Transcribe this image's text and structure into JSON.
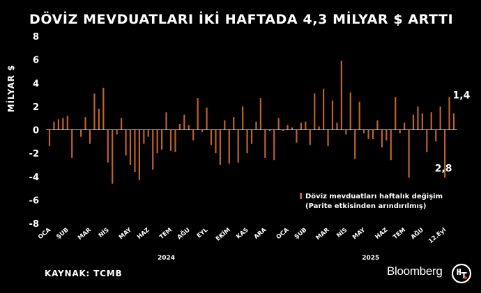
{
  "header": {
    "title": "DÖVİZ MEVDUATLARI İKİ HAFTADA 4,3 MİLYAR $ ARTTI"
  },
  "footer": {
    "source": "KAYNAK: TCMB",
    "brand": "Bloomberg"
  },
  "colors": {
    "bar": "#c0622b",
    "background": "#000000",
    "text": "#ffffff"
  },
  "chart_data": {
    "type": "bar",
    "title": "DÖVİZ MEVDUATLARI İKİ HAFTADA 4,3 MİLYAR $ ARTTI",
    "ylabel": "MİLYAR $",
    "xlabel": "",
    "ylim": [
      -8,
      8
    ],
    "yticks": [
      8,
      6,
      4,
      2,
      0,
      -2,
      -4,
      -6,
      -8
    ],
    "legend": {
      "label_line1": "Döviz mevduatları haftalık değişim",
      "label_line2": "(Parite etkisinden arındırılmış)",
      "placement": "lower-right"
    },
    "grid": false,
    "month_labels": [
      "OCA",
      "ŞUB",
      "MAR",
      "NİS",
      "MAY",
      "HAZ",
      "TEM",
      "AĞU",
      "EYL",
      "EKİM",
      "KAS",
      "ARA",
      "OCA",
      "ŞUB",
      "MAR",
      "NİS",
      "MAY",
      "HAZ",
      "TEM",
      "AĞU",
      "12.Eyl"
    ],
    "month_label_week_index": [
      0,
      4,
      9,
      13,
      18,
      22,
      27,
      31,
      35,
      40,
      44,
      48,
      53,
      57,
      62,
      66,
      70,
      75,
      79,
      83,
      88
    ],
    "year_labels": [
      "2024",
      "2025"
    ],
    "annotations": [
      {
        "text": "2,8",
        "week_index": 88
      },
      {
        "text": "1,4",
        "week_index": 89
      }
    ],
    "values": [
      -1.4,
      0.7,
      0.9,
      1.0,
      1.2,
      -2.4,
      0.0,
      -0.6,
      1.1,
      -1.2,
      3.1,
      1.8,
      3.6,
      -2.8,
      -4.6,
      -0.4,
      1.0,
      -2.2,
      -3.0,
      -3.6,
      -4.3,
      -1.2,
      -0.6,
      -3.4,
      -2.0,
      -1.7,
      1.5,
      -1.8,
      -1.9,
      0.5,
      1.3,
      0.4,
      -0.9,
      2.7,
      -0.2,
      1.9,
      -1.3,
      -2.0,
      -3.0,
      0.8,
      -2.9,
      1.1,
      -2.8,
      2.0,
      -2.0,
      -1.2,
      0.7,
      2.7,
      -2.4,
      -0.1,
      -2.6,
      1.0,
      -0.1,
      0.4,
      0.2,
      -1.1,
      0.6,
      0.7,
      -1.3,
      3.1,
      0.3,
      3.5,
      -1.4,
      2.5,
      0.6,
      5.9,
      -0.4,
      3.2,
      -2.5,
      2.4,
      -0.3,
      -0.8,
      -0.8,
      0.8,
      -1.5,
      -0.9,
      -2.6,
      2.8,
      -0.3,
      0.6,
      -4.1,
      1.3,
      2.0,
      1.4,
      -1.9,
      1.5,
      -1.0,
      2.0,
      -4.1,
      2.8,
      1.4
    ]
  }
}
